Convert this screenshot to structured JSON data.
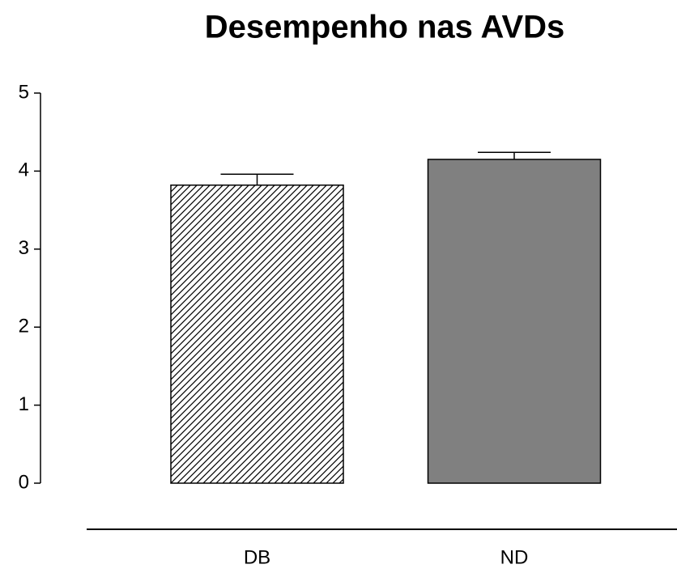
{
  "chart_data": {
    "type": "bar",
    "title": "Desempenho nas AVDs",
    "categories": [
      "DB",
      "ND"
    ],
    "values": [
      3.82,
      4.15
    ],
    "errors": [
      0.14,
      0.09
    ],
    "fills": [
      "hatch",
      "#808080"
    ],
    "ylim": [
      0,
      5
    ],
    "yticks": [
      0,
      1,
      2,
      3,
      4,
      5
    ],
    "grid": false
  }
}
